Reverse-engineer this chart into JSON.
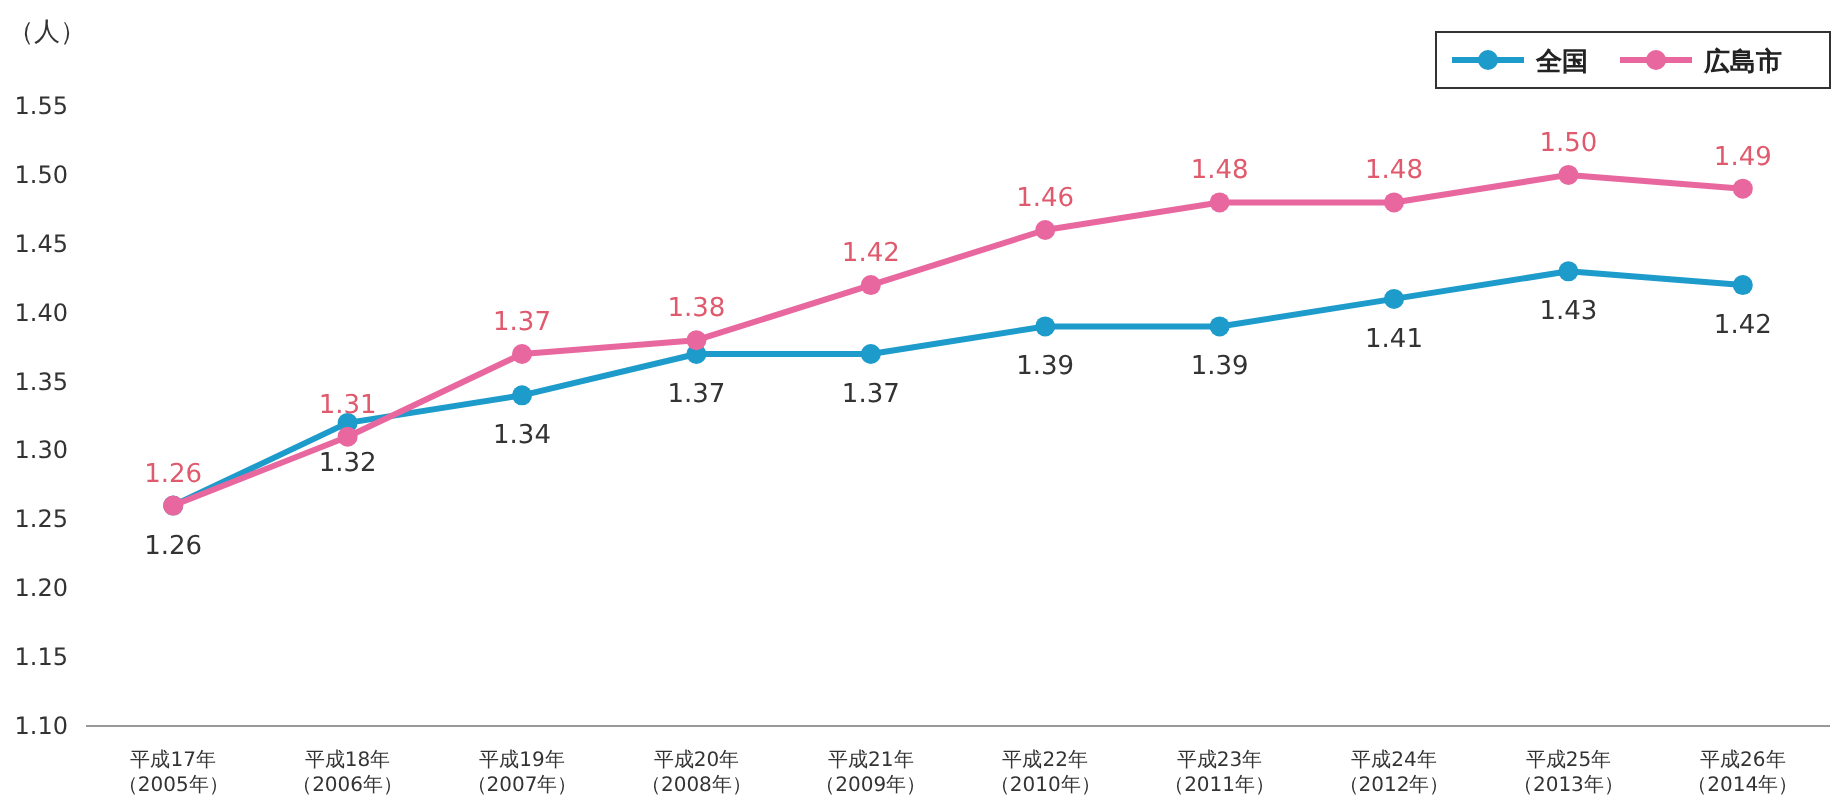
{
  "chart_data": {
    "type": "line",
    "ylabel": "（人）",
    "categories": [
      "平成17年（2005年）",
      "平成18年（2006年）",
      "平成19年（2007年）",
      "平成20年（2008年）",
      "平成21年（2009年）",
      "平成22年（2010年）",
      "平成23年（2011年）",
      "平成24年（2012年）",
      "平成25年（2013年）",
      "平成26年（2014年）"
    ],
    "series": [
      {
        "name": "全国",
        "color": "#1d9bcb",
        "values": [
          1.26,
          1.32,
          1.34,
          1.37,
          1.37,
          1.39,
          1.39,
          1.41,
          1.43,
          1.42
        ],
        "value_labels": [
          "1.26",
          "1.32",
          "1.34",
          "1.37",
          "1.37",
          "1.39",
          "1.39",
          "1.41",
          "1.43",
          "1.42"
        ]
      },
      {
        "name": "広島市",
        "color": "#e8679f",
        "values": [
          1.26,
          1.31,
          1.37,
          1.38,
          1.42,
          1.46,
          1.48,
          1.48,
          1.5,
          1.49
        ],
        "value_labels": [
          "1.26",
          "1.31",
          "1.37",
          "1.38",
          "1.42",
          "1.46",
          "1.48",
          "1.48",
          "1.50",
          "1.49"
        ]
      }
    ],
    "ylim": [
      1.1,
      1.55
    ],
    "yticks": [
      {
        "value": 1.1,
        "label": "1.10"
      },
      {
        "value": 1.15,
        "label": "1.15"
      },
      {
        "value": 1.2,
        "label": "1.20"
      },
      {
        "value": 1.25,
        "label": "1.25"
      },
      {
        "value": 1.3,
        "label": "1.30"
      },
      {
        "value": 1.35,
        "label": "1.35"
      },
      {
        "value": 1.4,
        "label": "1.40"
      },
      {
        "value": 1.45,
        "label": "1.45"
      },
      {
        "value": 1.5,
        "label": "1.50"
      },
      {
        "value": 1.55,
        "label": "1.55"
      }
    ],
    "grid": false,
    "legend": "top right",
    "marker": "circle",
    "line_style": "solid"
  }
}
